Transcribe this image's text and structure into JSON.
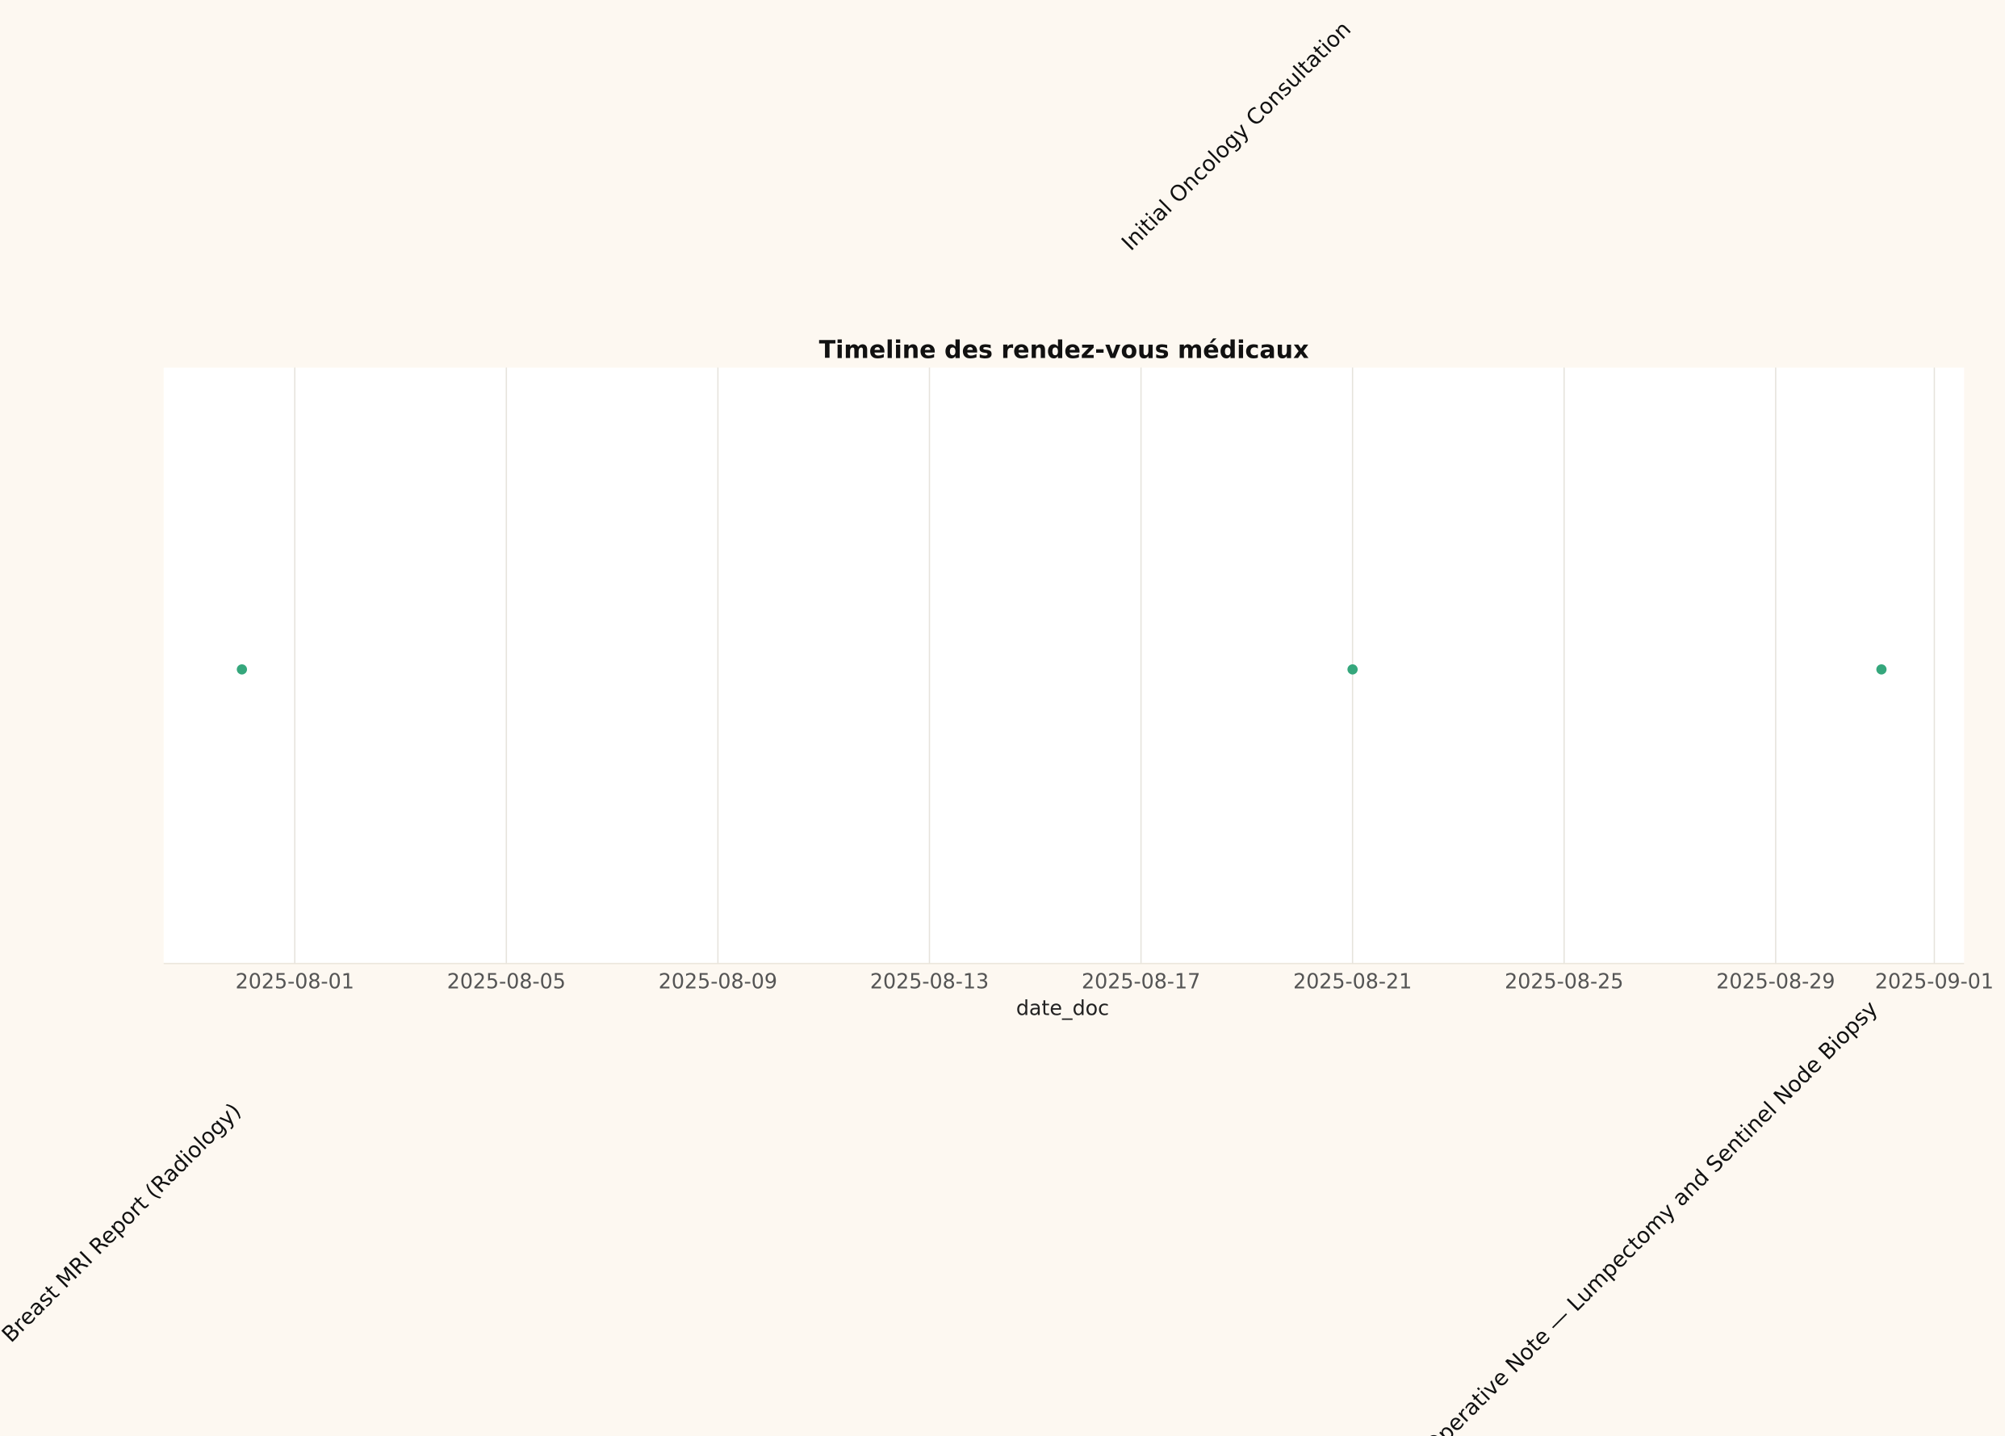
{
  "chart_data": {
    "type": "scatter",
    "title": "Timeline des rendez-vous médicaux",
    "x_label": "date_doc",
    "x": [
      "2025-07-31",
      "2025-08-21",
      "2025-08-31"
    ],
    "labels": [
      "Breast MRI Report (Radiology)",
      "Initial Oncology Consultation",
      "Operative Note — Lumpectomy and Sentinel Node Biopsy"
    ],
    "color": "#35a77c",
    "xlim": [
      "2025-07-29T12:30Z",
      "2025-09-01T13:30Z"
    ],
    "xticks": [
      "2025-08-01",
      "2025-08-05",
      "2025-08-09",
      "2025-08-13",
      "2025-08-17",
      "2025-08-21",
      "2025-08-25",
      "2025-08-29",
      "2025-09-01"
    ],
    "grid": true
  }
}
